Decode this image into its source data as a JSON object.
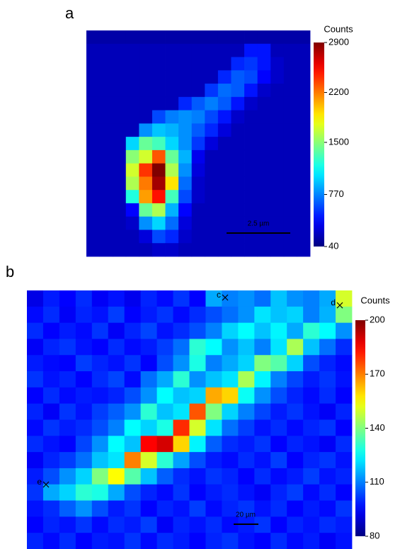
{
  "chart_data": [
    {
      "type": "heatmap",
      "panel_label": "a",
      "colorbar_title": "Counts",
      "colormap": "jet",
      "zlim": [
        40,
        2900
      ],
      "zticks": [
        40,
        770,
        1500,
        2200,
        2900
      ],
      "scale_bar": "2.5 µm",
      "annotations": [],
      "values": [
        [
          150,
          150,
          150,
          150,
          150,
          150,
          150,
          150,
          150,
          150,
          150,
          150,
          150,
          150,
          150,
          150,
          150
        ],
        [
          200,
          200,
          200,
          200,
          200,
          200,
          200,
          200,
          200,
          200,
          200,
          200,
          450,
          450,
          200,
          200,
          200
        ],
        [
          200,
          200,
          200,
          200,
          200,
          200,
          200,
          200,
          200,
          200,
          200,
          500,
          550,
          450,
          250,
          200,
          200
        ],
        [
          200,
          200,
          200,
          200,
          200,
          200,
          200,
          200,
          200,
          200,
          500,
          650,
          600,
          400,
          250,
          200,
          200
        ],
        [
          200,
          200,
          200,
          200,
          200,
          200,
          200,
          200,
          200,
          550,
          700,
          650,
          450,
          250,
          200,
          200,
          200
        ],
        [
          200,
          200,
          200,
          200,
          200,
          200,
          200,
          500,
          650,
          750,
          650,
          450,
          250,
          200,
          200,
          200,
          200
        ],
        [
          200,
          200,
          200,
          200,
          200,
          600,
          750,
          800,
          750,
          600,
          450,
          250,
          200,
          200,
          200,
          200,
          200
        ],
        [
          200,
          200,
          200,
          200,
          800,
          950,
          900,
          800,
          650,
          500,
          300,
          200,
          200,
          200,
          200,
          200,
          200
        ],
        [
          200,
          200,
          200,
          1000,
          1400,
          1300,
          1000,
          800,
          550,
          300,
          200,
          200,
          200,
          200,
          200,
          200,
          200
        ],
        [
          200,
          200,
          200,
          1500,
          1700,
          2300,
          1400,
          900,
          350,
          200,
          200,
          200,
          200,
          200,
          200,
          200,
          200
        ],
        [
          200,
          200,
          200,
          1700,
          2400,
          2900,
          1600,
          800,
          300,
          200,
          200,
          200,
          200,
          200,
          200,
          200,
          200
        ],
        [
          200,
          200,
          200,
          1600,
          2200,
          2800,
          1900,
          700,
          250,
          200,
          200,
          200,
          200,
          200,
          200,
          200,
          200
        ],
        [
          200,
          200,
          200,
          1200,
          2100,
          2500,
          1300,
          600,
          250,
          200,
          200,
          200,
          200,
          200,
          200,
          200,
          200
        ],
        [
          200,
          200,
          200,
          400,
          1400,
          1600,
          900,
          400,
          200,
          200,
          200,
          200,
          200,
          200,
          200,
          200,
          200
        ],
        [
          200,
          200,
          200,
          250,
          800,
          1000,
          700,
          300,
          200,
          200,
          200,
          200,
          200,
          200,
          200,
          200,
          200
        ],
        [
          200,
          200,
          200,
          200,
          300,
          600,
          500,
          250,
          200,
          200,
          200,
          200,
          200,
          200,
          200,
          200,
          200
        ],
        [
          200,
          200,
          200,
          200,
          200,
          250,
          250,
          200,
          200,
          200,
          200,
          200,
          200,
          200,
          200,
          200,
          200
        ]
      ]
    },
    {
      "type": "heatmap",
      "panel_label": "b",
      "colorbar_title": "Counts",
      "colormap": "jet",
      "zlim": [
        80,
        200
      ],
      "zticks": [
        80,
        110,
        140,
        170,
        200
      ],
      "scale_bar": "20 µm",
      "annotations": [
        "c",
        "d",
        "e"
      ],
      "values": [
        [
          92,
          98,
          95,
          100,
          94,
          97,
          93,
          99,
          96,
          101,
          95,
          115,
          110,
          112,
          108,
          118,
          112,
          110,
          115,
          150
        ],
        [
          96,
          100,
          94,
          99,
          97,
          102,
          95,
          98,
          101,
          96,
          100,
          104,
          108,
          112,
          122,
          118,
          120,
          110,
          116,
          140
        ],
        [
          100,
          95,
          98,
          96,
          101,
          94,
          99,
          103,
          97,
          100,
          104,
          110,
          120,
          125,
          118,
          124,
          115,
          130,
          125,
          112
        ],
        [
          94,
          99,
          101,
          97,
          95,
          100,
          96,
          98,
          102,
          108,
          130,
          125,
          112,
          118,
          110,
          122,
          145,
          118,
          108,
          100
        ],
        [
          98,
          96,
          95,
          102,
          99,
          97,
          101,
          95,
          104,
          112,
          128,
          110,
          115,
          120,
          140,
          135,
          120,
          104,
          99,
          96
        ],
        [
          101,
          97,
          99,
          95,
          100,
          103,
          96,
          108,
          115,
          130,
          112,
          118,
          122,
          145,
          124,
          110,
          103,
          98,
          101,
          97
        ],
        [
          95,
          100,
          96,
          98,
          97,
          99,
          104,
          112,
          125,
          118,
          120,
          165,
          160,
          126,
          112,
          104,
          99,
          96,
          100,
          95
        ],
        [
          99,
          94,
          101,
          97,
          102,
          106,
          112,
          130,
          118,
          122,
          175,
          140,
          120,
          110,
          103,
          98,
          101,
          97,
          94,
          99
        ],
        [
          96,
          101,
          98,
          100,
          104,
          110,
          125,
          120,
          128,
          180,
          150,
          122,
          108,
          102,
          97,
          100,
          96,
          99,
          101,
          95
        ],
        [
          100,
          97,
          95,
          103,
          112,
          125,
          118,
          185,
          190,
          160,
          124,
          106,
          100,
          98,
          101,
          95,
          99,
          97,
          94,
          100
        ],
        [
          94,
          99,
          102,
          108,
          118,
          122,
          170,
          150,
          130,
          114,
          104,
          98,
          96,
          100,
          97,
          102,
          95,
          99,
          101,
          97
        ],
        [
          98,
          104,
          112,
          120,
          140,
          155,
          135,
          118,
          106,
          100,
          97,
          101,
          99,
          95,
          100,
          96,
          98,
          102,
          97,
          99
        ],
        [
          101,
          115,
          120,
          130,
          128,
          115,
          104,
          99,
          96,
          101,
          95,
          98,
          100,
          97,
          94,
          99,
          102,
          96,
          100,
          95
        ],
        [
          97,
          100,
          106,
          112,
          104,
          98,
          101,
          95,
          99,
          97,
          102,
          96,
          99,
          101,
          97,
          100,
          95,
          98,
          96,
          101
        ],
        [
          95,
          99,
          97,
          101,
          96,
          100,
          98,
          102,
          94,
          99,
          97,
          100,
          96,
          98,
          101,
          95,
          99,
          97,
          100,
          98
        ],
        [
          99,
          96,
          100,
          95,
          98,
          97,
          101,
          96,
          100,
          98,
          95,
          99,
          101,
          97,
          95,
          100,
          96,
          98,
          94,
          97
        ]
      ]
    }
  ]
}
